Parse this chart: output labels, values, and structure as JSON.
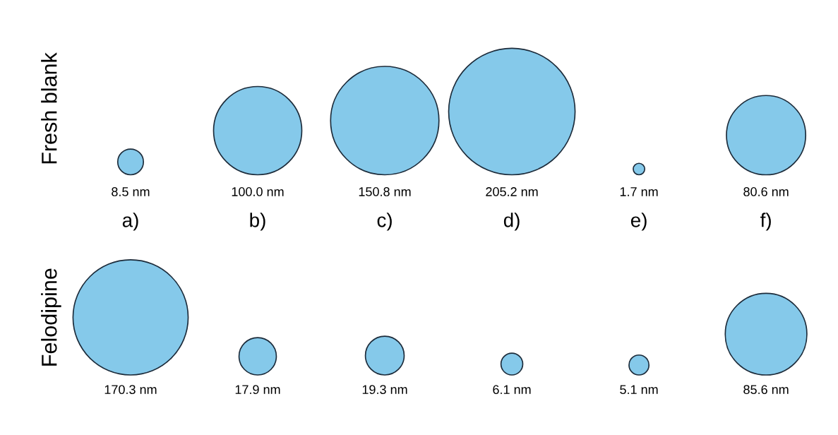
{
  "chart_data": [
    {
      "type": "other",
      "ylabel": "Fresh blank",
      "categories": [
        "a)",
        "b)",
        "c)",
        "d)",
        "e)",
        "f)"
      ],
      "color": "#85c9ea",
      "values": [
        8.5,
        100.0,
        150.8,
        205.2,
        1.7,
        80.6
      ],
      "value_labels": [
        "8.5 nm",
        "100.0 nm",
        "150.8 nm",
        "205.2 nm",
        "1.7 nm",
        "80.6 nm"
      ]
    },
    {
      "type": "other",
      "ylabel": "Felodipine",
      "categories": [
        null,
        null,
        null,
        null,
        null,
        null
      ],
      "color": "#85c9ea",
      "values": [
        170.3,
        17.9,
        19.3,
        6.1,
        5.1,
        85.6
      ],
      "value_labels": [
        "170.3 nm",
        "17.9 nm",
        "19.3 nm",
        "6.1 nm",
        "5.1 nm",
        "85.6 nm"
      ]
    }
  ]
}
